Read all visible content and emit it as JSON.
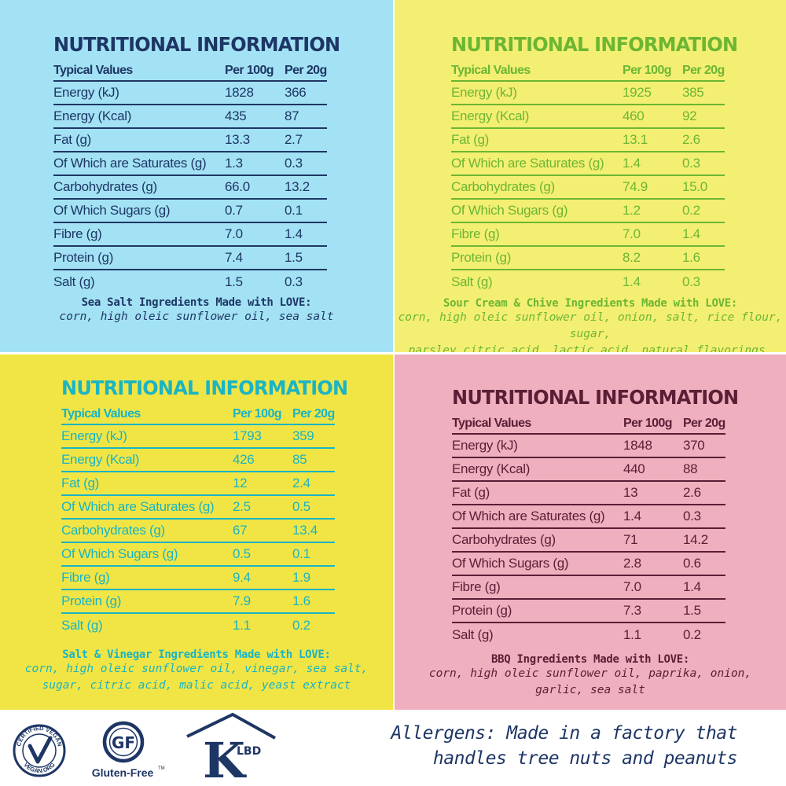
{
  "columns": {
    "label": "Typical Values",
    "per100": "Per 100g",
    "per20": "Per 20g"
  },
  "heading": "NUTRITIONAL INFORMATION",
  "panels": {
    "sea_salt": {
      "rows": [
        {
          "label": "Energy (kJ)",
          "per100": "1828",
          "per20": "366"
        },
        {
          "label": "Energy (Kcal)",
          "per100": "435",
          "per20": "87"
        },
        {
          "label": "Fat (g)",
          "per100": "13.3",
          "per20": "2.7"
        },
        {
          "label": "Of Which are Saturates (g)",
          "per100": "1.3",
          "per20": "0.3"
        },
        {
          "label": "Carbohydrates (g)",
          "per100": "66.0",
          "per20": "13.2"
        },
        {
          "label": "Of Which Sugars (g)",
          "per100": "0.7",
          "per20": "0.1"
        },
        {
          "label": "Fibre (g)",
          "per100": "7.0",
          "per20": "1.4"
        },
        {
          "label": "Protein (g)",
          "per100": "7.4",
          "per20": "1.5"
        },
        {
          "label": "Salt (g)",
          "per100": "1.5",
          "per20": "0.3"
        }
      ],
      "ingredients_title": "Sea Salt Ingredients Made with LOVE:",
      "ingredients_lines": [
        "corn, high oleic sunflower oil, sea salt"
      ],
      "color": "#1e3665",
      "background": "#a3e2f4"
    },
    "sour_cream": {
      "rows": [
        {
          "label": "Energy (kJ)",
          "per100": "1925",
          "per20": "385"
        },
        {
          "label": "Energy (Kcal)",
          "per100": "460",
          "per20": "92"
        },
        {
          "label": "Fat (g)",
          "per100": "13.1",
          "per20": "2.6"
        },
        {
          "label": "Of Which are Saturates (g)",
          "per100": "1.4",
          "per20": "0.3"
        },
        {
          "label": "Carbohydrates (g)",
          "per100": "74.9",
          "per20": "15.0"
        },
        {
          "label": "Of Which Sugars (g)",
          "per100": "1.2",
          "per20": "0.2"
        },
        {
          "label": "Fibre (g)",
          "per100": "7.0",
          "per20": "1.4"
        },
        {
          "label": "Protein (g)",
          "per100": "8.2",
          "per20": "1.6"
        },
        {
          "label": "Salt (g)",
          "per100": "1.4",
          "per20": "0.3"
        }
      ],
      "ingredients_title": "Sour Cream & Chive Ingredients Made with LOVE:",
      "ingredients_lines": [
        "corn, high oleic sunflower oil, onion, salt, rice flour, sugar,",
        "parsley,citric acid, lactic acid, natural flavorings, garlic"
      ],
      "color": "#6cb633",
      "background": "#f3ef73"
    },
    "salt_vinegar": {
      "rows": [
        {
          "label": "Energy (kJ)",
          "per100": "1793",
          "per20": "359"
        },
        {
          "label": "Energy (Kcal)",
          "per100": "426",
          "per20": "85"
        },
        {
          "label": "Fat (g)",
          "per100": "12",
          "per20": "2.4"
        },
        {
          "label": "Of Which are Saturates (g)",
          "per100": "2.5",
          "per20": "0.5"
        },
        {
          "label": "Carbohydrates (g)",
          "per100": "67",
          "per20": "13.4"
        },
        {
          "label": "Of Which Sugars (g)",
          "per100": "0.5",
          "per20": "0.1"
        },
        {
          "label": "Fibre (g)",
          "per100": "9.4",
          "per20": "1.9"
        },
        {
          "label": "Protein (g)",
          "per100": "7.9",
          "per20": "1.6"
        },
        {
          "label": "Salt (g)",
          "per100": "1.1",
          "per20": "0.2"
        }
      ],
      "ingredients_title": "Salt & Vinegar Ingredients Made with LOVE:",
      "ingredients_lines": [
        "corn, high oleic sunflower oil, vinegar, sea salt,",
        "sugar, citric acid, malic acid, yeast extract"
      ],
      "color": "#1ab4c4",
      "background": "#f1e545"
    },
    "bbq": {
      "rows": [
        {
          "label": "Energy (kJ)",
          "per100": "1848",
          "per20": "370"
        },
        {
          "label": "Energy (Kcal)",
          "per100": "440",
          "per20": "88"
        },
        {
          "label": "Fat (g)",
          "per100": "13",
          "per20": "2.6"
        },
        {
          "label": "Of Which are Saturates (g)",
          "per100": "1.4",
          "per20": "0.3"
        },
        {
          "label": "Carbohydrates (g)",
          "per100": "71",
          "per20": "14.2"
        },
        {
          "label": "Of Which Sugars (g)",
          "per100": "2.8",
          "per20": "0.6"
        },
        {
          "label": "Fibre (g)",
          "per100": "7.0",
          "per20": "1.4"
        },
        {
          "label": "Protein (g)",
          "per100": "7.3",
          "per20": "1.5"
        },
        {
          "label": "Salt (g)",
          "per100": "1.1",
          "per20": "0.2"
        }
      ],
      "ingredients_title": "BBQ Ingredients Made with LOVE:",
      "ingredients_lines": [
        "corn, high oleic sunflower oil, paprika, onion,",
        "garlic, sea salt"
      ],
      "color": "#5a1e35",
      "background": "#efafbe"
    }
  },
  "logos": {
    "vegan": {
      "icon": "certified-vegan-logo",
      "text_top": "CERTIFIED VEGAN",
      "text_bottom": "VEGAN.ORG"
    },
    "gluten_free": {
      "icon": "gluten-free-logo",
      "badge": "GF",
      "label": "Gluten-Free",
      "tm": "TM"
    },
    "kosher": {
      "icon": "klbd-kosher-logo",
      "letter": "K",
      "letters": "LBD"
    }
  },
  "allergens": {
    "line1": "Allergens: Made in a factory that",
    "line2": "handles tree nuts and peanuts"
  }
}
